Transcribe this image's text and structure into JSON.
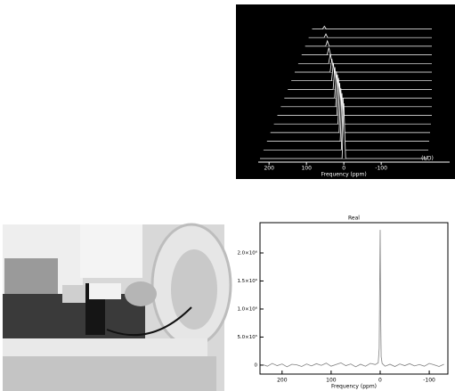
{
  "chart_data": [
    {
      "type": "waterfall",
      "x_label": "Frequency (ppm)",
      "annotation": "(t/D)",
      "xlim": [
        229,
        -283
      ],
      "xticks": [
        200,
        100,
        0,
        -100
      ],
      "peak_positions": [
        0,
        2,
        5,
        8,
        11,
        14,
        17,
        20,
        24,
        28,
        32,
        36,
        40,
        44,
        48,
        52
      ],
      "peak_heights": [
        62,
        58,
        54,
        50,
        46,
        42,
        36,
        30,
        25,
        20,
        15,
        11,
        8,
        6,
        4,
        3
      ],
      "color": "#ffffff"
    },
    {
      "type": "line",
      "title": "Real",
      "x_label": "Frequency (ppm)",
      "xlim": [
        245,
        -138
      ],
      "ylim": [
        -160000,
        2540000
      ],
      "xticks": [
        200,
        100,
        0,
        -100
      ],
      "yticks": [
        0,
        {
          "value": 500000,
          "label": "5.0×10⁵"
        },
        {
          "value": 1000000,
          "label": "1.0×10⁶"
        },
        {
          "value": 1500000,
          "label": "1.5×10⁶"
        },
        {
          "value": 2000000,
          "label": "2.0×10⁶"
        }
      ],
      "x": [
        240,
        230,
        220,
        210,
        200,
        190,
        180,
        170,
        160,
        150,
        140,
        130,
        120,
        110,
        100,
        90,
        80,
        70,
        60,
        50,
        40,
        30,
        20,
        10,
        4,
        2,
        1,
        0,
        -1,
        -2,
        -4,
        -10,
        -20,
        -30,
        -40,
        -50,
        -60,
        -70,
        -80,
        -90,
        -100,
        -110,
        -120,
        -130
      ],
      "values": [
        10000,
        -20000,
        30000,
        -10000,
        20000,
        -30000,
        15000,
        5000,
        -25000,
        20000,
        -15000,
        25000,
        -5000,
        35000,
        -20000,
        10000,
        40000,
        -10000,
        20000,
        -30000,
        15000,
        -20000,
        30000,
        10000,
        40000,
        300000,
        1400000,
        2410000,
        900000,
        150000,
        30000,
        -20000,
        15000,
        -25000,
        20000,
        -10000,
        25000,
        -15000,
        10000,
        -20000,
        30000,
        5000,
        -25000,
        15000
      ],
      "color": "#808080"
    }
  ]
}
